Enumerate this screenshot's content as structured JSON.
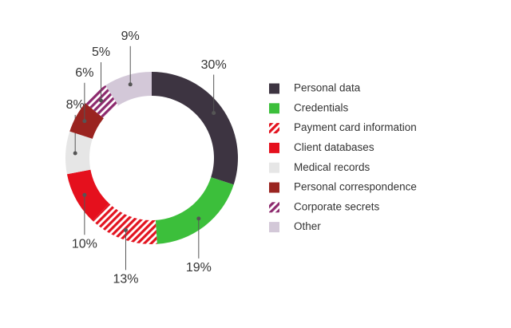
{
  "chart_data": {
    "type": "pie",
    "categories": [
      "Personal data",
      "Credentials",
      "Payment card information",
      "Client databases",
      "Medical records",
      "Personal correspondence",
      "Corporate secrets",
      "Other"
    ],
    "values": [
      30,
      19,
      13,
      10,
      8,
      6,
      5,
      9
    ],
    "value_labels": [
      "30%",
      "19%",
      "13%",
      "10%",
      "8%",
      "6%",
      "5%",
      "9%"
    ],
    "colors": [
      "#3d3441",
      "#3cbf3b",
      "#e3131f",
      "#e5101d",
      "#e6e6e6",
      "#9a2420",
      "#8d2a6e",
      "#d3c8d8"
    ],
    "hatched": [
      false,
      false,
      true,
      false,
      false,
      false,
      true,
      false
    ],
    "donut": true
  }
}
